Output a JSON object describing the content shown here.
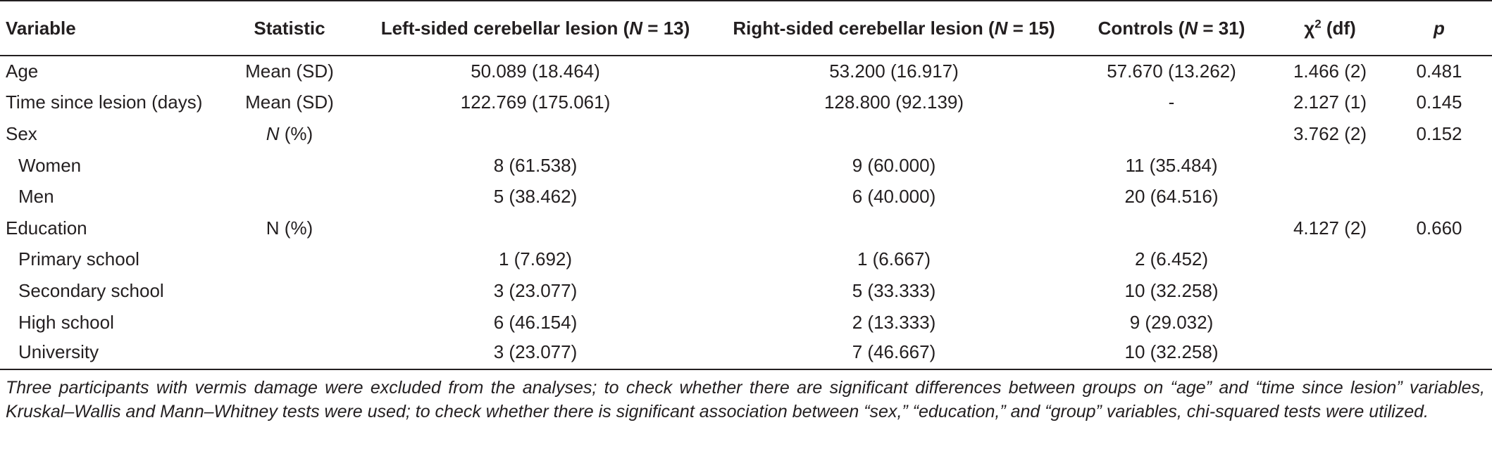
{
  "headers": {
    "variable": "Variable",
    "statistic": "Statistic",
    "left_pre": "Left-sided cerebellar lesion (",
    "left_n": "N",
    "left_post": " = 13)",
    "right_pre": "Right-sided cerebellar lesion (",
    "right_n": "N",
    "right_post": " = 15)",
    "controls_pre": "Controls (",
    "controls_n": "N",
    "controls_post": " = 31)",
    "chi_pre": "χ",
    "chi_sup": "2",
    "chi_post": " (df)",
    "p": "p"
  },
  "rows": [
    {
      "variable": "Age",
      "statistic": "Mean (SD)",
      "left": "50.089 (18.464)",
      "right": "53.200 (16.917)",
      "controls": "57.670 (13.262)",
      "chi": "1.466 (2)",
      "p": "0.481"
    },
    {
      "variable": "Time since lesion (days)",
      "statistic": "Mean (SD)",
      "left": "122.769 (175.061)",
      "right": "128.800 (92.139)",
      "controls": "-",
      "chi": "2.127 (1)",
      "p": "0.145"
    },
    {
      "variable": "Sex",
      "statistic_n": "N",
      "statistic_post": " (%)",
      "left": "",
      "right": "",
      "controls": "",
      "chi": "3.762 (2)",
      "p": "0.152"
    },
    {
      "variable": "Women",
      "statistic": "",
      "left": "8 (61.538)",
      "right": "9 (60.000)",
      "controls": "11 (35.484)",
      "chi": "",
      "p": ""
    },
    {
      "variable": "Men",
      "statistic": "",
      "left": "5 (38.462)",
      "right": "6 (40.000)",
      "controls": "20 (64.516)",
      "chi": "",
      "p": ""
    },
    {
      "variable": "Education",
      "statistic": "N (%)",
      "left": "",
      "right": "",
      "controls": "",
      "chi": "4.127 (2)",
      "p": "0.660"
    },
    {
      "variable": "Primary school",
      "statistic": "",
      "left": "1 (7.692)",
      "right": "1 (6.667)",
      "controls": "2 (6.452)",
      "chi": "",
      "p": ""
    },
    {
      "variable": "Secondary school",
      "statistic": "",
      "left": "3 (23.077)",
      "right": "5 (33.333)",
      "controls": "10 (32.258)",
      "chi": "",
      "p": ""
    },
    {
      "variable": "High school",
      "statistic": "",
      "left": "6 (46.154)",
      "right": "2 (13.333)",
      "controls": "9 (29.032)",
      "chi": "",
      "p": ""
    },
    {
      "variable": "University",
      "statistic": "",
      "left": "3 (23.077)",
      "right": "7 (46.667)",
      "controls": "10 (32.258)",
      "chi": "",
      "p": ""
    }
  ],
  "footnote": "Three participants with vermis damage were excluded from the analyses; to check whether there are significant differences between groups on “age” and “time since lesion” variables, Kruskal–Wallis and Mann–Whitney tests were used; to check whether there is significant association between “sex,” “education,” and “group” variables, chi-squared tests were utilized."
}
